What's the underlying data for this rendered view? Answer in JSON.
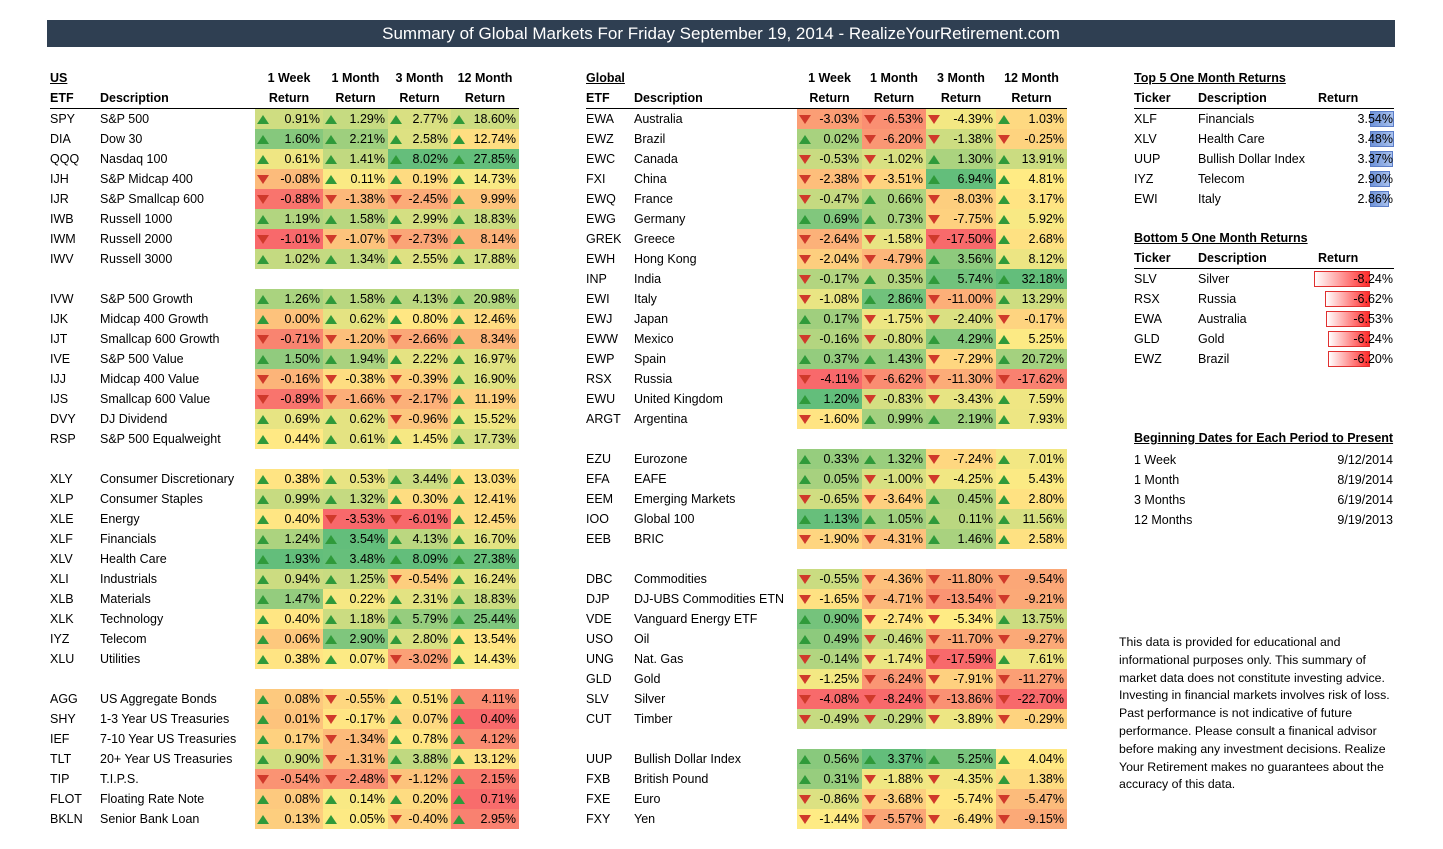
{
  "banner": "Summary of Global Markets For Friday September 19, 2014 - RealizeYourRetirement.com",
  "us": {
    "headers": {
      "region": "US",
      "etf": "ETF",
      "description": "Description",
      "periods": [
        "1 Week",
        "1 Month",
        "3 Month",
        "12 Month"
      ],
      "sub": [
        "Return",
        "Return",
        "Return",
        "Return"
      ]
    },
    "groups": [
      [
        {
          "t": "SPY",
          "d": "S&P 500",
          "v": [
            "0.91%",
            "1.29%",
            "2.77%",
            "18.60%"
          ]
        },
        {
          "t": "DIA",
          "d": "Dow 30",
          "v": [
            "1.60%",
            "2.21%",
            "2.58%",
            "12.74%"
          ]
        },
        {
          "t": "QQQ",
          "d": "Nasdaq 100",
          "v": [
            "0.61%",
            "1.41%",
            "8.02%",
            "27.85%"
          ]
        },
        {
          "t": "IJH",
          "d": "S&P Midcap 400",
          "v": [
            "-0.08%",
            "0.11%",
            "0.19%",
            "14.73%"
          ]
        },
        {
          "t": "IJR",
          "d": "S&P Smallcap 600",
          "v": [
            "-0.88%",
            "-1.38%",
            "-2.45%",
            "9.99%"
          ]
        },
        {
          "t": "IWB",
          "d": "Russell 1000",
          "v": [
            "1.19%",
            "1.58%",
            "2.99%",
            "18.83%"
          ]
        },
        {
          "t": "IWM",
          "d": "Russell 2000",
          "v": [
            "-1.01%",
            "-1.07%",
            "-2.73%",
            "8.14%"
          ]
        },
        {
          "t": "IWV",
          "d": "Russell 3000",
          "v": [
            "1.02%",
            "1.34%",
            "2.55%",
            "17.88%"
          ]
        }
      ],
      [
        {
          "t": "IVW",
          "d": "S&P 500 Growth",
          "v": [
            "1.26%",
            "1.58%",
            "4.13%",
            "20.98%"
          ]
        },
        {
          "t": "IJK",
          "d": "Midcap 400 Growth",
          "v": [
            "0.00%",
            "0.62%",
            "0.80%",
            "12.46%"
          ]
        },
        {
          "t": "IJT",
          "d": "Smallcap 600 Growth",
          "v": [
            "-0.71%",
            "-1.20%",
            "-2.66%",
            "8.34%"
          ]
        },
        {
          "t": "IVE",
          "d": "S&P 500 Value",
          "v": [
            "1.50%",
            "1.94%",
            "2.22%",
            "16.97%"
          ]
        },
        {
          "t": "IJJ",
          "d": "Midcap 400 Value",
          "v": [
            "-0.16%",
            "-0.38%",
            "-0.39%",
            "16.90%"
          ]
        },
        {
          "t": "IJS",
          "d": "Smallcap 600 Value",
          "v": [
            "-0.89%",
            "-1.66%",
            "-2.17%",
            "11.19%"
          ]
        },
        {
          "t": "DVY",
          "d": "DJ Dividend",
          "v": [
            "0.69%",
            "0.62%",
            "-0.96%",
            "15.52%"
          ]
        },
        {
          "t": "RSP",
          "d": "S&P 500 Equalweight",
          "v": [
            "0.44%",
            "0.61%",
            "1.45%",
            "17.73%"
          ]
        }
      ],
      [
        {
          "t": "XLY",
          "d": "Consumer Discretionary",
          "v": [
            "0.38%",
            "0.53%",
            "3.44%",
            "13.03%"
          ]
        },
        {
          "t": "XLP",
          "d": "Consumer Staples",
          "v": [
            "0.99%",
            "1.32%",
            "0.30%",
            "12.41%"
          ]
        },
        {
          "t": "XLE",
          "d": "Energy",
          "v": [
            "0.40%",
            "-3.53%",
            "-6.01%",
            "12.45%"
          ]
        },
        {
          "t": "XLF",
          "d": "Financials",
          "v": [
            "1.24%",
            "3.54%",
            "4.13%",
            "16.70%"
          ]
        },
        {
          "t": "XLV",
          "d": "Health Care",
          "v": [
            "1.93%",
            "3.48%",
            "8.09%",
            "27.38%"
          ]
        },
        {
          "t": "XLI",
          "d": "Industrials",
          "v": [
            "0.94%",
            "1.25%",
            "-0.54%",
            "16.24%"
          ]
        },
        {
          "t": "XLB",
          "d": "Materials",
          "v": [
            "1.47%",
            "0.22%",
            "2.31%",
            "18.83%"
          ]
        },
        {
          "t": "XLK",
          "d": "Technology",
          "v": [
            "0.40%",
            "1.18%",
            "5.79%",
            "25.44%"
          ]
        },
        {
          "t": "IYZ",
          "d": "Telecom",
          "v": [
            "0.06%",
            "2.90%",
            "2.80%",
            "13.54%"
          ]
        },
        {
          "t": "XLU",
          "d": "Utilities",
          "v": [
            "0.38%",
            "0.07%",
            "-3.02%",
            "14.43%"
          ]
        }
      ],
      [
        {
          "t": "AGG",
          "d": "US Aggregate Bonds",
          "v": [
            "0.08%",
            "-0.55%",
            "0.51%",
            "4.11%"
          ]
        },
        {
          "t": "SHY",
          "d": "1-3 Year US Treasuries",
          "v": [
            "0.01%",
            "-0.17%",
            "0.07%",
            "0.40%"
          ]
        },
        {
          "t": "IEF",
          "d": "7-10 Year US Treasuries",
          "v": [
            "0.17%",
            "-1.34%",
            "0.78%",
            "4.12%"
          ]
        },
        {
          "t": "TLT",
          "d": "20+ Year US Treasuries",
          "v": [
            "0.90%",
            "-1.31%",
            "3.88%",
            "13.12%"
          ]
        },
        {
          "t": "TIP",
          "d": "T.I.P.S.",
          "v": [
            "-0.54%",
            "-2.48%",
            "-1.12%",
            "2.15%"
          ]
        },
        {
          "t": "FLOT",
          "d": "Floating Rate Note",
          "v": [
            "0.08%",
            "0.14%",
            "0.20%",
            "0.71%"
          ]
        },
        {
          "t": "BKLN",
          "d": "Senior Bank Loan",
          "v": [
            "0.13%",
            "0.05%",
            "-0.40%",
            "2.95%"
          ]
        }
      ]
    ]
  },
  "global": {
    "headers": {
      "region": "Global",
      "etf": "ETF",
      "description": "Description",
      "periods": [
        "1 Week",
        "1 Month",
        "3 Month",
        "12 Month"
      ],
      "sub": [
        "Return",
        "Return",
        "Return",
        "Return"
      ]
    },
    "groups": [
      [
        {
          "t": "EWA",
          "d": "Australia",
          "v": [
            "-3.03%",
            "-6.53%",
            "-4.39%",
            "1.03%"
          ]
        },
        {
          "t": "EWZ",
          "d": "Brazil",
          "v": [
            "0.02%",
            "-6.20%",
            "-1.38%",
            "-0.25%"
          ]
        },
        {
          "t": "EWC",
          "d": "Canada",
          "v": [
            "-0.53%",
            "-1.02%",
            "1.30%",
            "13.91%"
          ]
        },
        {
          "t": "FXI",
          "d": "China",
          "v": [
            "-2.38%",
            "-3.51%",
            "6.94%",
            "4.81%"
          ]
        },
        {
          "t": "EWQ",
          "d": "France",
          "v": [
            "-0.47%",
            "0.66%",
            "-8.03%",
            "3.17%"
          ]
        },
        {
          "t": "EWG",
          "d": "Germany",
          "v": [
            "0.69%",
            "0.73%",
            "-7.75%",
            "5.92%"
          ]
        },
        {
          "t": "GREK",
          "d": "Greece",
          "v": [
            "-2.64%",
            "-1.58%",
            "-17.50%",
            "2.68%"
          ]
        },
        {
          "t": "EWH",
          "d": "Hong Kong",
          "v": [
            "-2.04%",
            "-4.79%",
            "3.56%",
            "8.12%"
          ]
        },
        {
          "t": "INP",
          "d": "India",
          "v": [
            "-0.17%",
            "0.35%",
            "5.74%",
            "32.18%"
          ]
        },
        {
          "t": "EWI",
          "d": "Italy",
          "v": [
            "-1.08%",
            "2.86%",
            "-11.00%",
            "13.29%"
          ]
        },
        {
          "t": "EWJ",
          "d": "Japan",
          "v": [
            "0.17%",
            "-1.75%",
            "-2.40%",
            "-0.17%"
          ]
        },
        {
          "t": "EWW",
          "d": "Mexico",
          "v": [
            "-0.16%",
            "-0.80%",
            "4.29%",
            "5.25%"
          ]
        },
        {
          "t": "EWP",
          "d": "Spain",
          "v": [
            "0.37%",
            "1.43%",
            "-7.29%",
            "20.72%"
          ]
        },
        {
          "t": "RSX",
          "d": "Russia",
          "v": [
            "-4.11%",
            "-6.62%",
            "-11.30%",
            "-17.62%"
          ]
        },
        {
          "t": "EWU",
          "d": "United Kingdom",
          "v": [
            "1.20%",
            "-0.83%",
            "-3.43%",
            "7.59%"
          ]
        },
        {
          "t": "ARGT",
          "d": "Argentina",
          "v": [
            "-1.60%",
            "0.99%",
            "2.19%",
            "7.93%"
          ]
        }
      ],
      [
        {
          "t": "EZU",
          "d": "Eurozone",
          "v": [
            "0.33%",
            "1.32%",
            "-7.24%",
            "7.01%"
          ]
        },
        {
          "t": "EFA",
          "d": "EAFE",
          "v": [
            "0.05%",
            "-1.00%",
            "-4.25%",
            "5.43%"
          ]
        },
        {
          "t": "EEM",
          "d": "Emerging Markets",
          "v": [
            "-0.65%",
            "-3.64%",
            "0.45%",
            "2.80%"
          ]
        },
        {
          "t": "IOO",
          "d": "Global 100",
          "v": [
            "1.13%",
            "1.05%",
            "0.11%",
            "11.56%"
          ]
        },
        {
          "t": "EEB",
          "d": "BRIC",
          "v": [
            "-1.90%",
            "-4.31%",
            "1.46%",
            "2.58%"
          ]
        }
      ],
      [
        {
          "t": "DBC",
          "d": "Commodities",
          "v": [
            "-0.55%",
            "-4.36%",
            "-11.80%",
            "-9.54%"
          ]
        },
        {
          "t": "DJP",
          "d": "DJ-UBS Commodities ETN",
          "v": [
            "-1.65%",
            "-4.71%",
            "-13.54%",
            "-9.21%"
          ]
        },
        {
          "t": "VDE",
          "d": "Vanguard Energy ETF",
          "v": [
            "0.90%",
            "-2.74%",
            "-5.34%",
            "13.75%"
          ]
        },
        {
          "t": "USO",
          "d": "Oil",
          "v": [
            "0.49%",
            "-0.46%",
            "-11.70%",
            "-9.27%"
          ]
        },
        {
          "t": "UNG",
          "d": "Nat. Gas",
          "v": [
            "-0.14%",
            "-1.74%",
            "-17.59%",
            "7.61%"
          ]
        },
        {
          "t": "GLD",
          "d": "Gold",
          "v": [
            "-1.25%",
            "-6.24%",
            "-7.91%",
            "-11.27%"
          ]
        },
        {
          "t": "SLV",
          "d": "Silver",
          "v": [
            "-4.08%",
            "-8.24%",
            "-13.86%",
            "-22.70%"
          ]
        },
        {
          "t": "CUT",
          "d": "Timber",
          "v": [
            "-0.49%",
            "-0.29%",
            "-3.89%",
            "-0.29%"
          ]
        }
      ],
      [
        {
          "t": "UUP",
          "d": "Bullish Dollar Index",
          "v": [
            "0.56%",
            "3.37%",
            "5.25%",
            "4.04%"
          ]
        },
        {
          "t": "FXB",
          "d": "British Pound",
          "v": [
            "0.31%",
            "-1.88%",
            "-4.35%",
            "1.38%"
          ]
        },
        {
          "t": "FXE",
          "d": "Euro",
          "v": [
            "-0.86%",
            "-3.68%",
            "-5.74%",
            "-5.47%"
          ]
        },
        {
          "t": "FXY",
          "d": "Yen",
          "v": [
            "-1.44%",
            "-5.57%",
            "-6.49%",
            "-9.15%"
          ]
        }
      ]
    ]
  },
  "top5": {
    "title": "Top 5 One Month Returns",
    "h": [
      "Ticker",
      "Description",
      "Return"
    ],
    "rows": [
      {
        "t": "XLF",
        "d": "Financials",
        "v": "3.54%",
        "n": 3.54
      },
      {
        "t": "XLV",
        "d": "Health Care",
        "v": "3.48%",
        "n": 3.48
      },
      {
        "t": "UUP",
        "d": "Bullish Dollar Index",
        "v": "3.37%",
        "n": 3.37
      },
      {
        "t": "IYZ",
        "d": "Telecom",
        "v": "2.90%",
        "n": 2.9
      },
      {
        "t": "EWI",
        "d": "Italy",
        "v": "2.86%",
        "n": 2.86
      }
    ]
  },
  "bottom5": {
    "title": "Bottom 5 One Month Returns",
    "h": [
      "Ticker",
      "Description",
      "Return"
    ],
    "rows": [
      {
        "t": "SLV",
        "d": "Silver",
        "v": "-8.24%",
        "n": -8.24
      },
      {
        "t": "RSX",
        "d": "Russia",
        "v": "-6.62%",
        "n": -6.62
      },
      {
        "t": "EWA",
        "d": "Australia",
        "v": "-6.53%",
        "n": -6.53
      },
      {
        "t": "GLD",
        "d": "Gold",
        "v": "-6.24%",
        "n": -6.24
      },
      {
        "t": "EWZ",
        "d": "Brazil",
        "v": "-6.20%",
        "n": -6.2
      }
    ]
  },
  "dates": {
    "title": "Beginning Dates for Each Period to Present",
    "rows": [
      {
        "p": "1 Week",
        "d": "9/12/2014"
      },
      {
        "p": "1 Month",
        "d": "8/19/2014"
      },
      {
        "p": "3 Months",
        "d": "6/19/2014"
      },
      {
        "p": "12 Months",
        "d": "9/19/2013"
      }
    ]
  },
  "disclaimer": "This data is provided for educational and informational purposes only. This summary of market data does not constitute investing advice. Investing in financial markets involves risk of loss.  Past performance is not indicative of future performance. Please consult a finanical advisor before making any investment decisions. Realize Your Retirement makes no guarantees about the accuracy of this data.",
  "colors": {
    "up": "#2f9a3a",
    "down": "#d0392b",
    "banner": "#2f3f52",
    "scale_low": "#f8696b",
    "scale_mid": "#ffeb84",
    "scale_high": "#63be7b"
  }
}
